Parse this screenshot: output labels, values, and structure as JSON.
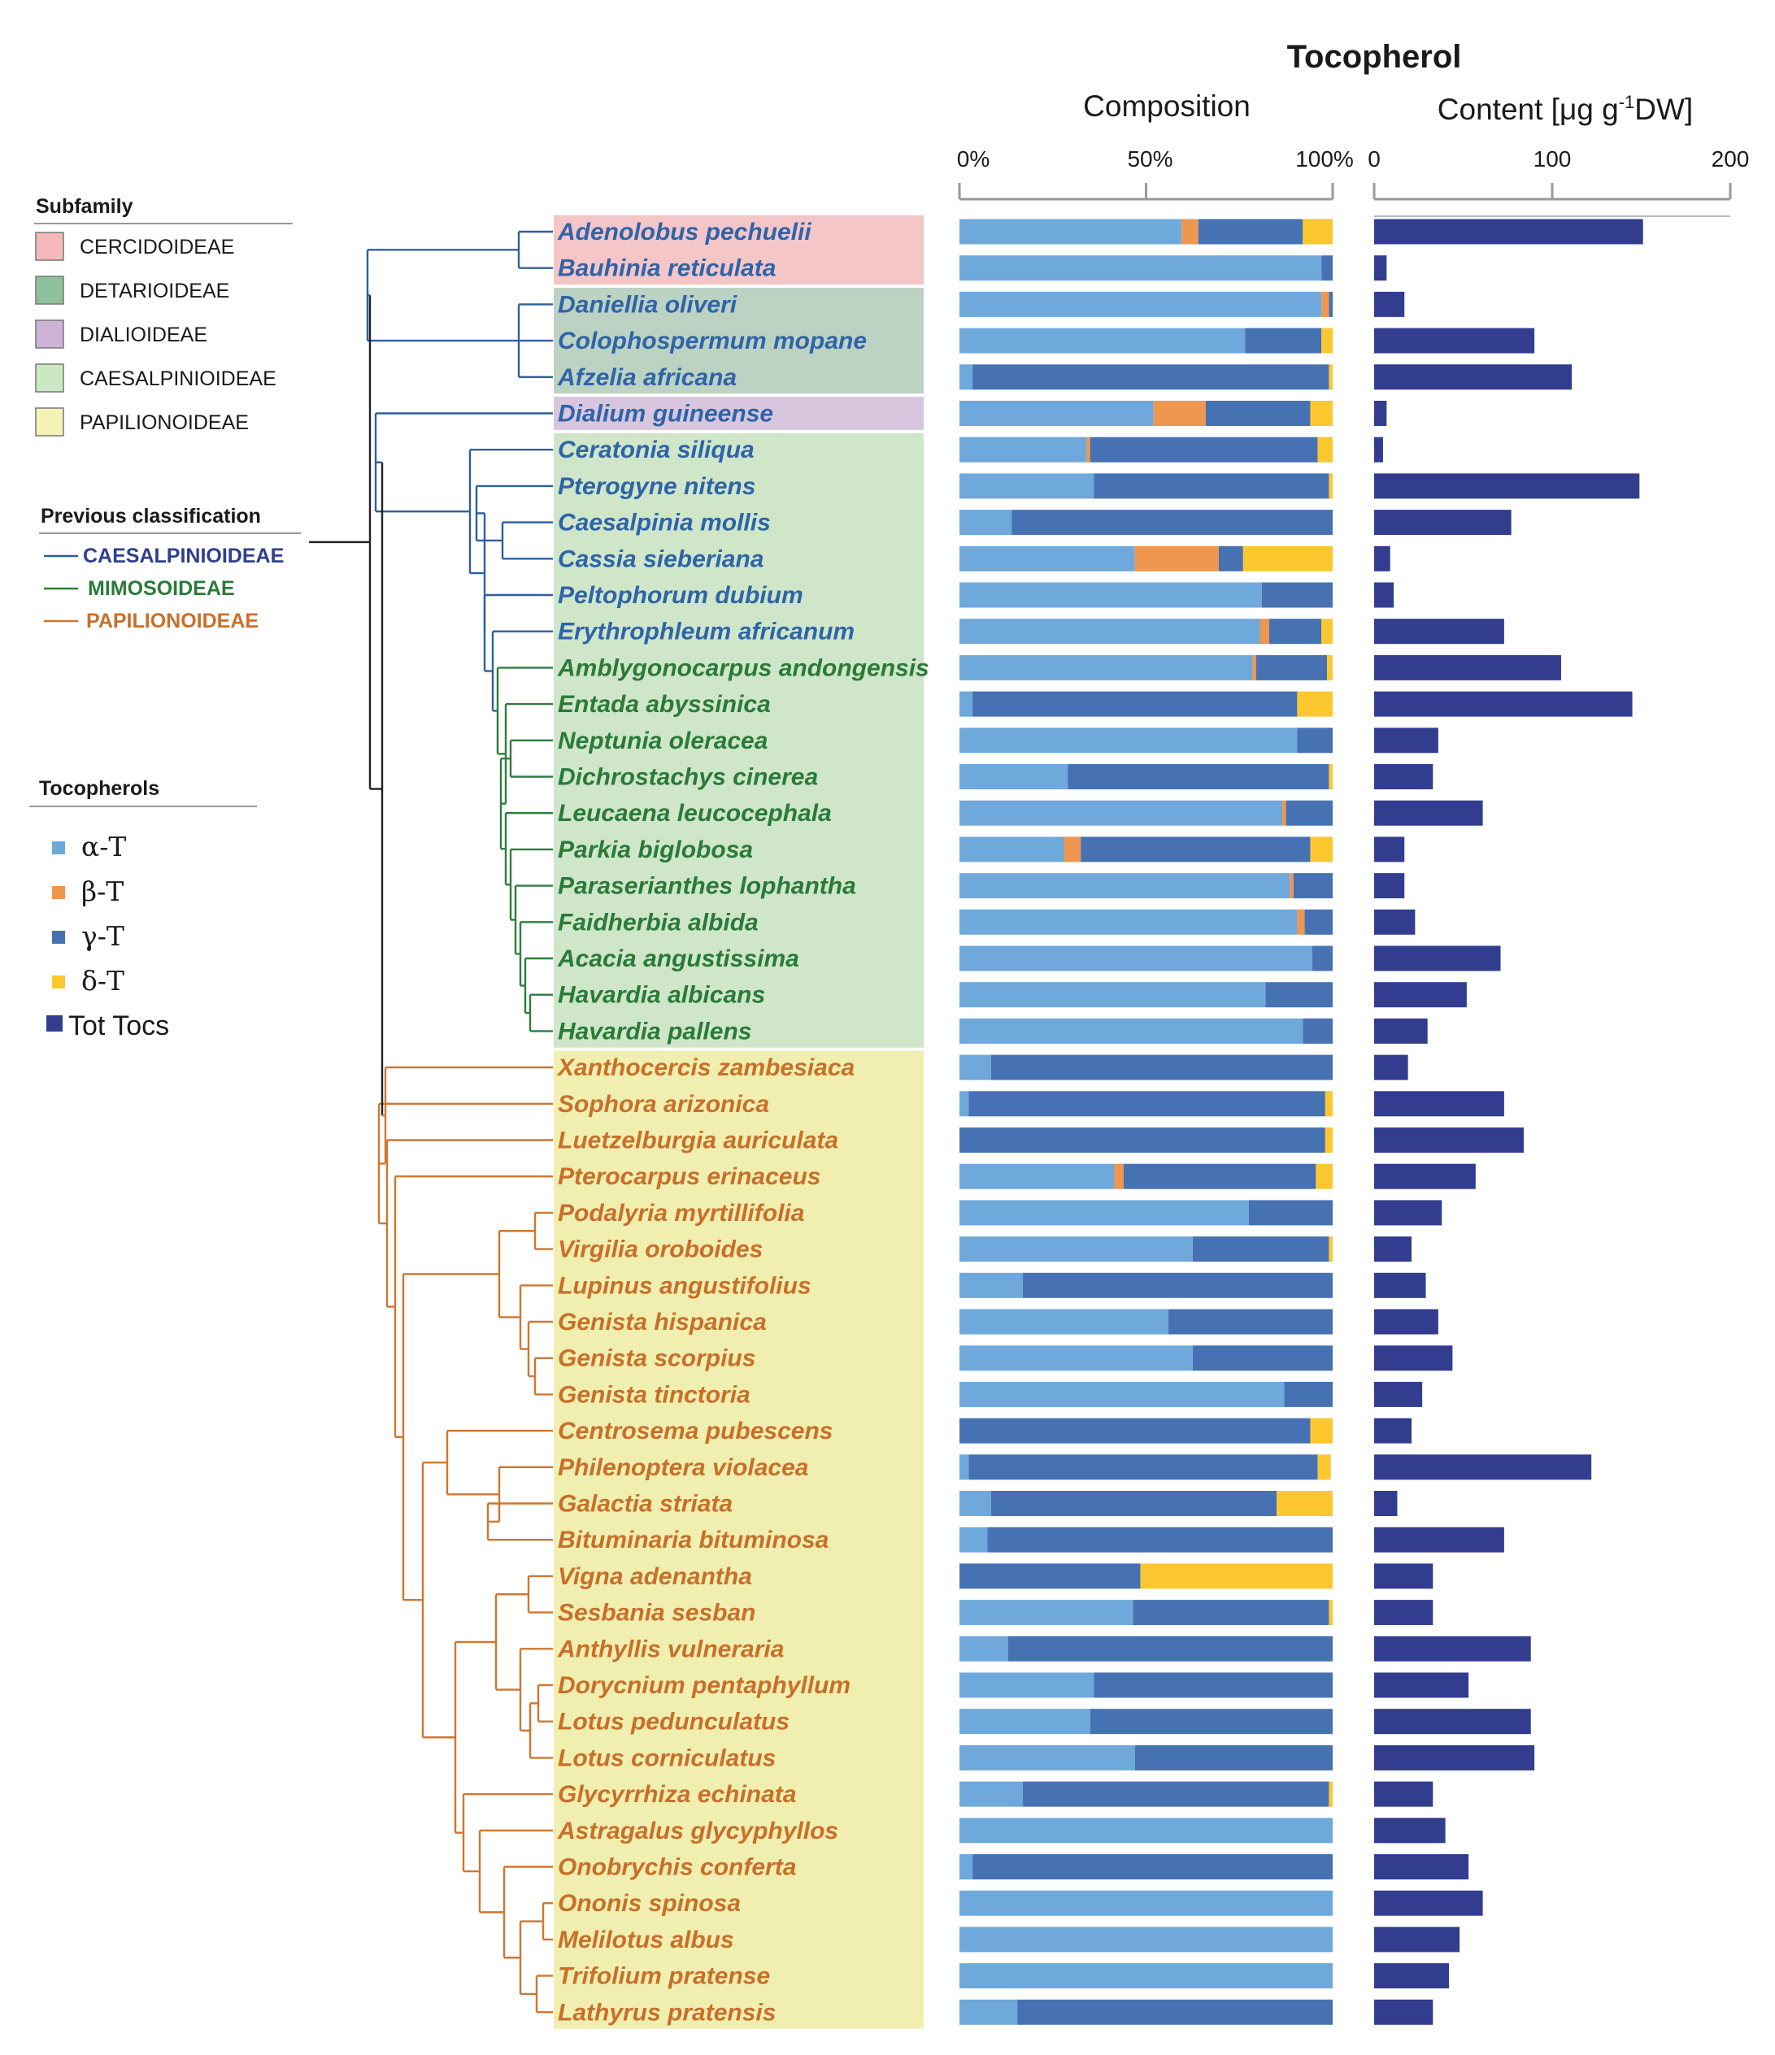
{
  "colors": {
    "alpha": "#6fa9dc",
    "beta": "#ef9650",
    "gamma": "#4672b3",
    "delta": "#fdc82f",
    "total": "#333d8f",
    "caesalpinioideae_line": "#2f5f9f",
    "mimosoideae_line": "#2e7d3e",
    "papilionoideae_line": "#d0762f",
    "root_line": "#222222",
    "sub_cercidoideae": "#f4c6c8",
    "sub_detarioideae": "#bcd2c2",
    "sub_dialioideae": "#d7c6de",
    "sub_caesalpinioideae": "#cfe6c9",
    "sub_papilionoideae": "#f0efb0",
    "legend_cercidoideae": "#f5b8bb",
    "legend_detarioideae": "#8fc29c",
    "legend_dialioideae": "#cdb3d6",
    "legend_caesalpinioideae": "#cbe8c4",
    "legend_papilionoideae": "#f4f2b6"
  },
  "header": {
    "title": "Tocopherol",
    "composition": "Composition",
    "content_label": "Content [μg g",
    "content_sup": "-1",
    "content_suffix": "DW]"
  },
  "legend": {
    "subfamily_title": "Subfamily",
    "subfamilies": [
      {
        "key": "cercidoideae",
        "label": "CERCIDOIDEAE"
      },
      {
        "key": "detarioideae",
        "label": "DETARIOIDEAE"
      },
      {
        "key": "dialioideae",
        "label": "DIALIOIDEAE"
      },
      {
        "key": "caesalpinioideae",
        "label": "CAESALPINIOIDEAE"
      },
      {
        "key": "papilionoideae",
        "label": "PAPILIONOIDEAE"
      }
    ],
    "previous_title": "Previous classification",
    "previous": [
      {
        "key": "caes",
        "label": "CAESALPINIOIDEAE"
      },
      {
        "key": "mimo",
        "label": "MIMOSOIDEAE"
      },
      {
        "key": "papi",
        "label": "PAPILIONOIDEAE"
      }
    ],
    "tocopherols_title": "Tocopherols",
    "tocopherols": [
      {
        "key": "alpha",
        "label": "α-T"
      },
      {
        "key": "beta",
        "label": "β-T"
      },
      {
        "key": "gamma",
        "label": "γ-T"
      },
      {
        "key": "delta",
        "label": "δ-T"
      },
      {
        "key": "total",
        "label": "Tot Tocs"
      }
    ]
  },
  "chart_data": [
    {
      "type": "bar",
      "stacked": true,
      "orientation": "horizontal",
      "title": "Composition",
      "xlabel": "",
      "xlim": [
        0,
        100
      ],
      "xticks": [
        "0%",
        "50%",
        "100%"
      ],
      "series_names": [
        "α-T",
        "β-T",
        "γ-T",
        "δ-T"
      ],
      "categories": [
        "Adenolobus pechuelii",
        "Bauhinia reticulata",
        "Daniellia oliveri",
        "Colophospermum mopane",
        "Afzelia africana",
        "Dialium guineense",
        "Ceratonia siliqua",
        "Pterogyne nitens",
        "Caesalpinia mollis",
        "Cassia sieberiana",
        "Peltophorum dubium",
        "Erythrophleum africanum",
        "Amblygonocarpus andongensis",
        "Entada abyssinica",
        "Neptunia oleracea",
        "Dichrostachys cinerea",
        "Leucaena leucocephala",
        "Parkia biglobosa",
        "Paraserianthes lophantha",
        "Faidherbia albida",
        "Acacia angustissima",
        "Havardia albicans",
        "Havardia pallens",
        "Xanthocercis zambesiaca",
        "Sophora arizonica",
        "Luetzelburgia auriculata",
        "Pterocarpus erinaceus",
        "Podalyria myrtillifolia",
        "Virgilia oroboides",
        "Lupinus angustifolius",
        "Genista hispanica",
        "Genista scorpius",
        "Genista tinctoria",
        "Centrosema pubescens",
        "Philenoptera violacea",
        "Galactia striata",
        "Bituminaria bituminosa",
        "Vigna adenantha",
        "Sesbania sesban",
        "Anthyllis vulneraria",
        "Dorycnium pentaphyllum",
        "Lotus pedunculatus",
        "Lotus corniculatus",
        "Glycyrrhiza echinata",
        "Astragalus glycyphyllos",
        "Onobrychis conferta",
        "Ononis spinosa",
        "Melilotus albus",
        "Trifolium pratense",
        "Lathyrus pratensis"
      ],
      "series": [
        {
          "name": "α-T",
          "values": [
            59.5,
            97,
            97,
            76.5,
            3.5,
            52,
            34,
            36,
            14,
            47,
            81,
            80.5,
            78.5,
            3.5,
            90.5,
            29,
            86.5,
            28,
            88.5,
            90.5,
            94.5,
            82,
            92,
            8.5,
            2.5,
            0,
            41.5,
            77.5,
            62.5,
            17,
            56,
            62.5,
            87,
            0,
            2.5,
            8.5,
            7.5,
            0,
            46.5,
            13,
            36,
            35,
            47,
            17,
            100,
            3.5,
            100,
            100,
            100,
            15.5
          ]
        },
        {
          "name": "β-T",
          "values": [
            4.5,
            0,
            2,
            0,
            0,
            14,
            1,
            0,
            0,
            22.5,
            0,
            2.5,
            1,
            0,
            0,
            0,
            1,
            4.5,
            1,
            2,
            0,
            0,
            0,
            0,
            0,
            0,
            2.5,
            0,
            0,
            0,
            0,
            0,
            0,
            0,
            0,
            0,
            0,
            0,
            0,
            0,
            0,
            0,
            0,
            0,
            0,
            0,
            0,
            0,
            0,
            0
          ]
        },
        {
          "name": "γ-T",
          "values": [
            28,
            3,
            1,
            20.5,
            95.5,
            28,
            61,
            63,
            86,
            6.5,
            19,
            14,
            19,
            87,
            9.5,
            70,
            12.5,
            61.5,
            10.5,
            7.5,
            5.5,
            18,
            8,
            91.5,
            95.5,
            98,
            51.5,
            22.5,
            36.5,
            83,
            44,
            37.5,
            13,
            94,
            93.5,
            76.5,
            92.5,
            48.5,
            52.5,
            87,
            64,
            65,
            53,
            82,
            0,
            96.5,
            0,
            0,
            0,
            84.5
          ]
        },
        {
          "name": "δ-T",
          "values": [
            8,
            0,
            0,
            3,
            1,
            6,
            4,
            1,
            0,
            24,
            0,
            3,
            1.5,
            9.5,
            0,
            1,
            0,
            6,
            0,
            0,
            0,
            0,
            0,
            0,
            2,
            2,
            4.5,
            0,
            1,
            0,
            0,
            0,
            0,
            6,
            3.5,
            15,
            0,
            51.5,
            1,
            0,
            0,
            0,
            0,
            1,
            0,
            0,
            0,
            0,
            0,
            0
          ]
        }
      ]
    },
    {
      "type": "bar",
      "orientation": "horizontal",
      "title": "Content [μg g-1DW]",
      "xlim": [
        0,
        200
      ],
      "xticks": [
        "0",
        "100",
        "200"
      ],
      "series": [
        {
          "name": "Tot Tocs",
          "values": [
            151,
            7,
            17,
            90,
            111,
            7,
            5,
            149,
            77,
            9,
            11,
            73,
            105,
            145,
            36,
            33,
            61,
            17,
            17,
            23,
            71,
            52,
            30,
            19,
            73,
            84,
            57,
            38,
            21,
            29,
            36,
            44,
            27,
            21,
            122,
            13,
            73,
            33,
            33,
            88,
            53,
            88,
            90,
            33,
            40,
            53,
            61,
            48,
            42,
            33
          ]
        }
      ]
    }
  ]
}
